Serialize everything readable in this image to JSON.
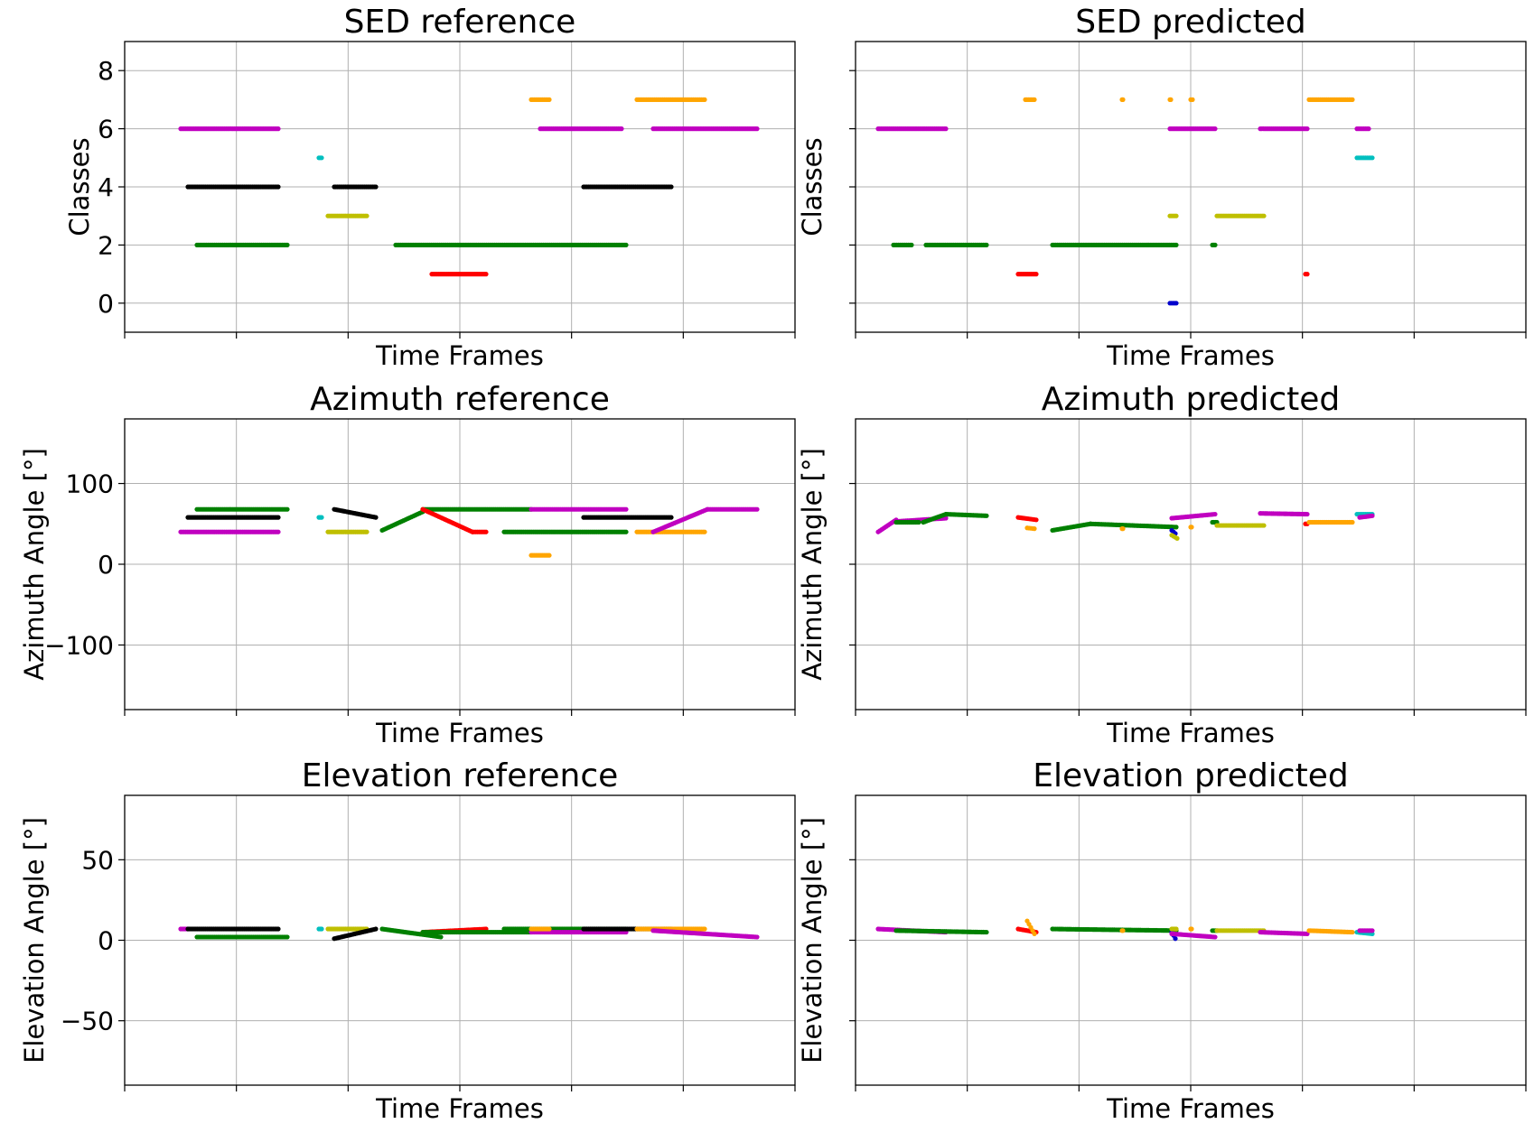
{
  "chart_data": [
    {
      "type": "scatter",
      "title": "SED reference",
      "xlabel": "Time Frames",
      "ylabel": "Classes",
      "ylim": [
        -1,
        9
      ],
      "yticks": [
        "0",
        "2",
        "4",
        "6",
        "8"
      ],
      "show_ytick_labels": true,
      "grid": true,
      "segments": [
        {
          "color": "#c000c0",
          "x": [
            62,
            170
          ],
          "y": [
            6,
            6
          ]
        },
        {
          "color": "#000000",
          "x": [
            70,
            170
          ],
          "y": [
            4,
            4
          ]
        },
        {
          "color": "#008000",
          "x": [
            80,
            180
          ],
          "y": [
            2,
            2
          ]
        },
        {
          "color": "#00bfbf",
          "x": [
            215,
            218
          ],
          "y": [
            5,
            5
          ]
        },
        {
          "color": "#bfbf00",
          "x": [
            225,
            268
          ],
          "y": [
            3,
            3
          ]
        },
        {
          "color": "#000000",
          "x": [
            232,
            278
          ],
          "y": [
            4,
            4
          ]
        },
        {
          "color": "#008000",
          "x": [
            300,
            555
          ],
          "y": [
            2,
            2
          ]
        },
        {
          "color": "#ff0000",
          "x": [
            340,
            400
          ],
          "y": [
            1,
            1
          ]
        },
        {
          "color": "#ffa500",
          "x": [
            450,
            470
          ],
          "y": [
            7,
            7
          ]
        },
        {
          "color": "#c000c0",
          "x": [
            460,
            550
          ],
          "y": [
            6,
            6
          ]
        },
        {
          "color": "#000000",
          "x": [
            508,
            605
          ],
          "y": [
            4,
            4
          ]
        },
        {
          "color": "#ffa500",
          "x": [
            567,
            642
          ],
          "y": [
            7,
            7
          ]
        },
        {
          "color": "#c000c0",
          "x": [
            585,
            700
          ],
          "y": [
            6,
            6
          ]
        }
      ]
    },
    {
      "type": "scatter",
      "title": "SED predicted",
      "xlabel": "Time Frames",
      "ylabel": "Classes",
      "ylim": [
        -1,
        9
      ],
      "yticks": [
        "0",
        "2",
        "4",
        "6",
        "8"
      ],
      "show_ytick_labels": false,
      "grid": true,
      "segments": [
        {
          "color": "#c000c0",
          "x": [
            25,
            100
          ],
          "y": [
            6,
            6
          ]
        },
        {
          "color": "#008000",
          "x": [
            42,
            62
          ],
          "y": [
            2,
            2
          ]
        },
        {
          "color": "#008000",
          "x": [
            78,
            145
          ],
          "y": [
            2,
            2
          ]
        },
        {
          "color": "#ff0000",
          "x": [
            180,
            200
          ],
          "y": [
            1,
            1
          ]
        },
        {
          "color": "#ffa500",
          "x": [
            188,
            198
          ],
          "y": [
            7,
            7
          ]
        },
        {
          "color": "#008000",
          "x": [
            218,
            355
          ],
          "y": [
            2,
            2
          ]
        },
        {
          "color": "#ffa500",
          "x": [
            295,
            296
          ],
          "y": [
            7,
            7
          ]
        },
        {
          "color": "#ffa500",
          "x": [
            348,
            349
          ],
          "y": [
            7,
            7
          ]
        },
        {
          "color": "#ffa500",
          "x": [
            371,
            373
          ],
          "y": [
            7,
            7
          ]
        },
        {
          "color": "#c000c0",
          "x": [
            348,
            398
          ],
          "y": [
            6,
            6
          ]
        },
        {
          "color": "#bfbf00",
          "x": [
            348,
            355
          ],
          "y": [
            3,
            3
          ]
        },
        {
          "color": "#0000cc",
          "x": [
            348,
            355
          ],
          "y": [
            0,
            0
          ]
        },
        {
          "color": "#008000",
          "x": [
            395,
            398
          ],
          "y": [
            2,
            2
          ]
        },
        {
          "color": "#bfbf00",
          "x": [
            400,
            452
          ],
          "y": [
            3,
            3
          ]
        },
        {
          "color": "#c000c0",
          "x": [
            448,
            500
          ],
          "y": [
            6,
            6
          ]
        },
        {
          "color": "#ff0000",
          "x": [
            498,
            500
          ],
          "y": [
            1,
            1
          ]
        },
        {
          "color": "#ffa500",
          "x": [
            502,
            550
          ],
          "y": [
            7,
            7
          ]
        },
        {
          "color": "#c000c0",
          "x": [
            555,
            568
          ],
          "y": [
            6,
            6
          ]
        },
        {
          "color": "#00bfbf",
          "x": [
            555,
            572
          ],
          "y": [
            5,
            5
          ]
        }
      ]
    },
    {
      "type": "scatter",
      "title": "Azimuth reference",
      "xlabel": "Time Frames",
      "ylabel": "Azimuth Angle [°]",
      "ylim": [
        -180,
        180
      ],
      "yticks": [
        "−100",
        "0",
        "100"
      ],
      "show_ytick_labels": true,
      "grid": true,
      "segments": [
        {
          "color": "#c000c0",
          "x": [
            62,
            170
          ],
          "y": [
            40,
            40
          ]
        },
        {
          "color": "#000000",
          "x": [
            70,
            170
          ],
          "y": [
            58,
            58
          ]
        },
        {
          "color": "#008000",
          "x": [
            80,
            180
          ],
          "y": [
            68,
            68
          ]
        },
        {
          "color": "#00bfbf",
          "x": [
            215,
            218
          ],
          "y": [
            58,
            58
          ]
        },
        {
          "color": "#bfbf00",
          "x": [
            225,
            268
          ],
          "y": [
            40,
            40
          ]
        },
        {
          "color": "#000000",
          "x": [
            232,
            278
          ],
          "y": [
            68,
            58
          ]
        },
        {
          "color": "#008000",
          "x": [
            285,
            330
          ],
          "y": [
            42,
            65
          ]
        },
        {
          "color": "#008000",
          "x": [
            330,
            450
          ],
          "y": [
            68,
            68
          ]
        },
        {
          "color": "#ff0000",
          "x": [
            330,
            385
          ],
          "y": [
            68,
            40
          ]
        },
        {
          "color": "#ff0000",
          "x": [
            385,
            400
          ],
          "y": [
            40,
            40
          ]
        },
        {
          "color": "#c000c0",
          "x": [
            450,
            555
          ],
          "y": [
            68,
            68
          ]
        },
        {
          "color": "#008000",
          "x": [
            420,
            555
          ],
          "y": [
            40,
            40
          ]
        },
        {
          "color": "#ffa500",
          "x": [
            450,
            470
          ],
          "y": [
            11,
            11
          ]
        },
        {
          "color": "#000000",
          "x": [
            508,
            605
          ],
          "y": [
            58,
            58
          ]
        },
        {
          "color": "#ffa500",
          "x": [
            567,
            642
          ],
          "y": [
            40,
            40
          ]
        },
        {
          "color": "#c000c0",
          "x": [
            585,
            645
          ],
          "y": [
            40,
            68
          ]
        },
        {
          "color": "#c000c0",
          "x": [
            645,
            700
          ],
          "y": [
            68,
            68
          ]
        }
      ]
    },
    {
      "type": "scatter",
      "title": "Azimuth predicted",
      "xlabel": "Time Frames",
      "ylabel": "Azimuth Angle [°]",
      "ylim": [
        -180,
        180
      ],
      "yticks": [
        "−100",
        "0",
        "100"
      ],
      "show_ytick_labels": false,
      "grid": true,
      "segments": [
        {
          "color": "#c000c0",
          "x": [
            25,
            45
          ],
          "y": [
            40,
            55
          ]
        },
        {
          "color": "#c000c0",
          "x": [
            45,
            100
          ],
          "y": [
            53,
            57
          ]
        },
        {
          "color": "#008000",
          "x": [
            45,
            70
          ],
          "y": [
            52,
            52
          ]
        },
        {
          "color": "#008000",
          "x": [
            75,
            100
          ],
          "y": [
            52,
            62
          ]
        },
        {
          "color": "#008000",
          "x": [
            100,
            145
          ],
          "y": [
            62,
            60
          ]
        },
        {
          "color": "#ff0000",
          "x": [
            180,
            200
          ],
          "y": [
            58,
            55
          ]
        },
        {
          "color": "#ffa500",
          "x": [
            190,
            198
          ],
          "y": [
            45,
            44
          ]
        },
        {
          "color": "#008000",
          "x": [
            218,
            260
          ],
          "y": [
            42,
            50
          ]
        },
        {
          "color": "#008000",
          "x": [
            260,
            355
          ],
          "y": [
            50,
            46
          ]
        },
        {
          "color": "#ffa500",
          "x": [
            295,
            296
          ],
          "y": [
            44,
            44
          ]
        },
        {
          "color": "#ffa500",
          "x": [
            371,
            372
          ],
          "y": [
            46,
            46
          ]
        },
        {
          "color": "#0000cc",
          "x": [
            350,
            354
          ],
          "y": [
            42,
            38
          ]
        },
        {
          "color": "#bfbf00",
          "x": [
            350,
            356
          ],
          "y": [
            36,
            32
          ]
        },
        {
          "color": "#c000c0",
          "x": [
            350,
            398
          ],
          "y": [
            57,
            62
          ]
        },
        {
          "color": "#008000",
          "x": [
            395,
            400
          ],
          "y": [
            52,
            52
          ]
        },
        {
          "color": "#bfbf00",
          "x": [
            400,
            452
          ],
          "y": [
            48,
            48
          ]
        },
        {
          "color": "#c000c0",
          "x": [
            448,
            500
          ],
          "y": [
            63,
            62
          ]
        },
        {
          "color": "#ff0000",
          "x": [
            498,
            500
          ],
          "y": [
            50,
            50
          ]
        },
        {
          "color": "#ffa500",
          "x": [
            502,
            550
          ],
          "y": [
            52,
            52
          ]
        },
        {
          "color": "#00bfbf",
          "x": [
            555,
            572
          ],
          "y": [
            62,
            62
          ]
        },
        {
          "color": "#c000c0",
          "x": [
            558,
            572
          ],
          "y": [
            58,
            60
          ]
        }
      ]
    },
    {
      "type": "scatter",
      "title": "Elevation reference",
      "xlabel": "Time Frames",
      "ylabel": "Elevation Angle [°]",
      "ylim": [
        -90,
        90
      ],
      "yticks": [
        "−50",
        "0",
        "50"
      ],
      "show_ytick_labels": true,
      "grid": true,
      "segments": [
        {
          "color": "#c000c0",
          "x": [
            62,
            70
          ],
          "y": [
            7,
            7
          ]
        },
        {
          "color": "#000000",
          "x": [
            70,
            170
          ],
          "y": [
            7,
            7
          ]
        },
        {
          "color": "#008000",
          "x": [
            80,
            180
          ],
          "y": [
            2,
            2
          ]
        },
        {
          "color": "#00bfbf",
          "x": [
            215,
            218
          ],
          "y": [
            7,
            7
          ]
        },
        {
          "color": "#bfbf00",
          "x": [
            225,
            268
          ],
          "y": [
            7,
            7
          ]
        },
        {
          "color": "#000000",
          "x": [
            232,
            278
          ],
          "y": [
            1,
            7
          ]
        },
        {
          "color": "#008000",
          "x": [
            285,
            350
          ],
          "y": [
            7,
            2
          ]
        },
        {
          "color": "#ff0000",
          "x": [
            330,
            400
          ],
          "y": [
            5,
            7
          ]
        },
        {
          "color": "#008000",
          "x": [
            330,
            450
          ],
          "y": [
            5,
            5
          ]
        },
        {
          "color": "#008000",
          "x": [
            420,
            555
          ],
          "y": [
            7,
            7
          ]
        },
        {
          "color": "#c000c0",
          "x": [
            450,
            555
          ],
          "y": [
            5,
            5
          ]
        },
        {
          "color": "#ffa500",
          "x": [
            450,
            470
          ],
          "y": [
            7,
            7
          ]
        },
        {
          "color": "#000000",
          "x": [
            508,
            605
          ],
          "y": [
            7,
            7
          ]
        },
        {
          "color": "#ffa500",
          "x": [
            567,
            642
          ],
          "y": [
            7,
            7
          ]
        },
        {
          "color": "#c000c0",
          "x": [
            585,
            700
          ],
          "y": [
            6,
            2
          ]
        }
      ]
    },
    {
      "type": "scatter",
      "title": "Elevation predicted",
      "xlabel": "Time Frames",
      "ylabel": "Elevation Angle [°]",
      "ylim": [
        -90,
        90
      ],
      "yticks": [
        "−50",
        "0",
        "50"
      ],
      "show_ytick_labels": false,
      "grid": true,
      "segments": [
        {
          "color": "#c000c0",
          "x": [
            25,
            100
          ],
          "y": [
            7,
            5
          ]
        },
        {
          "color": "#008000",
          "x": [
            45,
            145
          ],
          "y": [
            6,
            5
          ]
        },
        {
          "color": "#ff0000",
          "x": [
            180,
            200
          ],
          "y": [
            7,
            5
          ]
        },
        {
          "color": "#ffa500",
          "x": [
            190,
            198
          ],
          "y": [
            12,
            4
          ]
        },
        {
          "color": "#008000",
          "x": [
            218,
            355
          ],
          "y": [
            7,
            6
          ]
        },
        {
          "color": "#ffa500",
          "x": [
            295,
            296
          ],
          "y": [
            6,
            6
          ]
        },
        {
          "color": "#ffa500",
          "x": [
            371,
            372
          ],
          "y": [
            7,
            7
          ]
        },
        {
          "color": "#0000cc",
          "x": [
            350,
            354
          ],
          "y": [
            5,
            1
          ]
        },
        {
          "color": "#bfbf00",
          "x": [
            350,
            355
          ],
          "y": [
            7,
            7
          ]
        },
        {
          "color": "#c000c0",
          "x": [
            350,
            398
          ],
          "y": [
            4,
            2
          ]
        },
        {
          "color": "#008000",
          "x": [
            395,
            400
          ],
          "y": [
            6,
            6
          ]
        },
        {
          "color": "#bfbf00",
          "x": [
            400,
            452
          ],
          "y": [
            6,
            6
          ]
        },
        {
          "color": "#c000c0",
          "x": [
            448,
            500
          ],
          "y": [
            5,
            4
          ]
        },
        {
          "color": "#ffa500",
          "x": [
            502,
            550
          ],
          "y": [
            6,
            5
          ]
        },
        {
          "color": "#00bfbf",
          "x": [
            555,
            572
          ],
          "y": [
            5,
            4
          ]
        },
        {
          "color": "#c000c0",
          "x": [
            558,
            572
          ],
          "y": [
            6,
            6
          ]
        }
      ]
    }
  ]
}
